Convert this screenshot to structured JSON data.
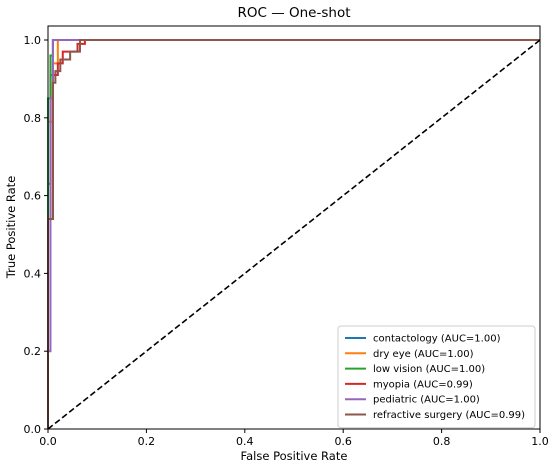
{
  "chart_data": {
    "type": "line",
    "title": "ROC — One-shot",
    "xlabel": "False Positive Rate",
    "ylabel": "True Positive Rate",
    "xlim": [
      0.0,
      1.0
    ],
    "ylim": [
      0.0,
      1.0
    ],
    "xticks": [
      "0.0",
      "0.2",
      "0.4",
      "0.6",
      "0.8",
      "1.0"
    ],
    "yticks": [
      "0.0",
      "0.2",
      "0.4",
      "0.6",
      "0.8",
      "1.0"
    ],
    "grid": false,
    "legend_position": "lower-right",
    "series": [
      {
        "name": "contactology (AUC=1.00)",
        "color": "#1f77b4",
        "x": [
          0.0,
          0.0,
          0.005,
          0.005,
          0.01,
          0.01,
          1.0
        ],
        "y": [
          0.0,
          0.63,
          0.63,
          0.91,
          0.91,
          1.0,
          1.0
        ]
      },
      {
        "name": "dry eye (AUC=1.00)",
        "color": "#ff7f0e",
        "x": [
          0.0,
          0.0,
          0.01,
          0.01,
          0.02,
          0.02,
          1.0
        ],
        "y": [
          0.0,
          0.79,
          0.79,
          0.94,
          0.94,
          1.0,
          1.0
        ]
      },
      {
        "name": "low vision (AUC=1.00)",
        "color": "#2ca02c",
        "x": [
          0.0,
          0.0,
          0.005,
          0.005,
          0.01,
          0.01,
          1.0
        ],
        "y": [
          0.0,
          0.85,
          0.85,
          0.96,
          0.96,
          1.0,
          1.0
        ]
      },
      {
        "name": "myopia (AUC=0.99)",
        "color": "#d62728",
        "x": [
          0.0,
          0.0,
          0.01,
          0.01,
          0.02,
          0.02,
          0.03,
          0.03,
          0.06,
          0.06,
          0.075,
          0.075,
          1.0
        ],
        "y": [
          0.0,
          0.54,
          0.54,
          0.91,
          0.91,
          0.94,
          0.94,
          0.97,
          0.97,
          0.99,
          0.99,
          1.0,
          1.0
        ]
      },
      {
        "name": "pediatric (AUC=1.00)",
        "color": "#9467bd",
        "x": [
          0.0,
          0.0,
          0.005,
          0.005,
          0.01,
          0.01,
          1.0
        ],
        "y": [
          0.0,
          0.2,
          0.2,
          0.85,
          0.85,
          1.0,
          1.0
        ]
      },
      {
        "name": "refractive surgery (AUC=0.99)",
        "color": "#8c564b",
        "x": [
          0.0,
          0.0,
          0.01,
          0.01,
          0.015,
          0.015,
          0.025,
          0.025,
          0.045,
          0.045,
          0.065,
          0.065,
          1.0
        ],
        "y": [
          0.0,
          0.54,
          0.54,
          0.89,
          0.89,
          0.92,
          0.92,
          0.95,
          0.95,
          0.97,
          0.97,
          1.0,
          1.0
        ]
      }
    ],
    "reference_line": {
      "style": "dashed",
      "color": "#000000",
      "x": [
        0.0,
        1.0
      ],
      "y": [
        0.0,
        1.0
      ]
    }
  }
}
